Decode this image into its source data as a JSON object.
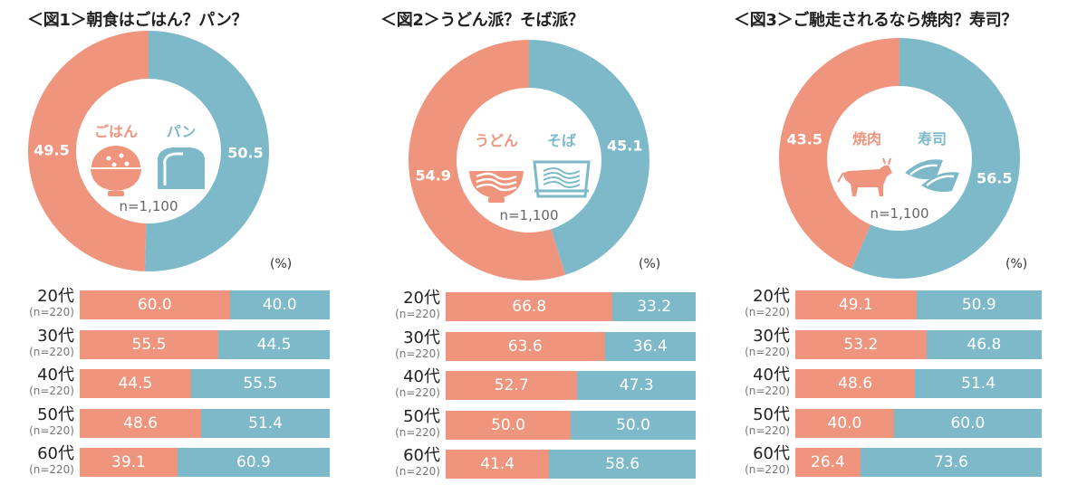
{
  "colors": {
    "left": "#EF957D",
    "right": "#7EB9C9"
  },
  "chart_data": [
    {
      "type": "donut+stacked-bar",
      "title": "＜図1＞朝食はごはん？パン？",
      "n_label": "n=1,100",
      "unit": "(%)",
      "left": {
        "name": "ごはん",
        "value": 49.5,
        "icon": "rice-bowl-icon"
      },
      "right": {
        "name": "パン",
        "value": 50.5,
        "icon": "bread-icon"
      },
      "categories": [
        "20代",
        "30代",
        "40代",
        "50代",
        "60代"
      ],
      "category_n": [
        "(n=220)",
        "(n=220)",
        "(n=220)",
        "(n=220)",
        "(n=220)"
      ],
      "series": [
        {
          "name": "ごはん",
          "values": [
            60.0,
            55.5,
            44.5,
            48.6,
            39.1
          ]
        },
        {
          "name": "パン",
          "values": [
            40.0,
            44.5,
            55.5,
            51.4,
            60.9
          ]
        }
      ]
    },
    {
      "type": "donut+stacked-bar",
      "title": "＜図2＞うどん派？そば派？",
      "n_label": "n=1,100",
      "unit": "(%)",
      "left": {
        "name": "うどん",
        "value": 54.9,
        "icon": "udon-bowl-icon"
      },
      "right": {
        "name": "そば",
        "value": 45.1,
        "icon": "soba-tray-icon"
      },
      "categories": [
        "20代",
        "30代",
        "40代",
        "50代",
        "60代"
      ],
      "category_n": [
        "(n=220)",
        "(n=220)",
        "(n=220)",
        "(n=220)",
        "(n=220)"
      ],
      "series": [
        {
          "name": "うどん",
          "values": [
            66.8,
            63.6,
            52.7,
            50.0,
            41.4
          ]
        },
        {
          "name": "そば",
          "values": [
            33.2,
            36.4,
            47.3,
            50.0,
            58.6
          ]
        }
      ]
    },
    {
      "type": "donut+stacked-bar",
      "title": "＜図3＞ご馳走されるなら焼肉？寿司？",
      "n_label": "n=1,100",
      "unit": "(%)",
      "left": {
        "name": "焼肉",
        "value": 43.5,
        "icon": "cow-icon"
      },
      "right": {
        "name": "寿司",
        "value": 56.5,
        "icon": "sushi-icon"
      },
      "categories": [
        "20代",
        "30代",
        "40代",
        "50代",
        "60代"
      ],
      "category_n": [
        "(n=220)",
        "(n=220)",
        "(n=220)",
        "(n=220)",
        "(n=220)"
      ],
      "series": [
        {
          "name": "焼肉",
          "values": [
            49.1,
            53.2,
            48.6,
            40.0,
            26.4
          ]
        },
        {
          "name": "寿司",
          "values": [
            50.9,
            46.8,
            51.4,
            60.0,
            73.6
          ]
        }
      ]
    }
  ]
}
